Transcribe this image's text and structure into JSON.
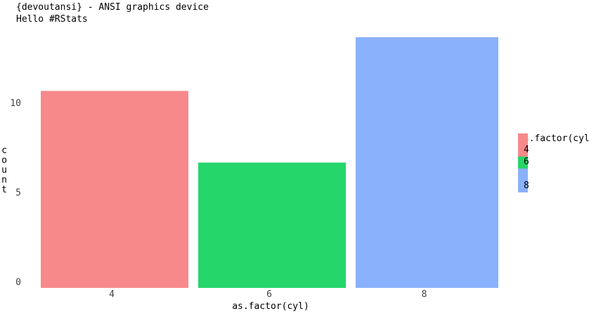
{
  "header": {
    "title": "{devoutansi} - ANSI graphics device",
    "subtitle": "Hello #RStats"
  },
  "chart_data": {
    "type": "bar",
    "categories": [
      "4",
      "6",
      "8"
    ],
    "values": [
      11,
      7,
      14
    ],
    "xlabel": "as.factor(cyl)",
    "ylabel": "count",
    "yticks": [
      "0",
      "5",
      "10"
    ],
    "ytick_values": [
      0,
      5,
      10
    ],
    "ylim": [
      0,
      14
    ],
    "grid": false,
    "legend_position": "right",
    "legend": {
      "title": "as.factor(cyl)",
      "items": [
        {
          "label": "4",
          "color": "#f8898a"
        },
        {
          "label": "6",
          "color": "#25d66b"
        },
        {
          "label": "8",
          "color": "#8ab1fb"
        }
      ]
    },
    "colors": [
      "#f8898a",
      "#25d66b",
      "#8ab1fb"
    ]
  }
}
